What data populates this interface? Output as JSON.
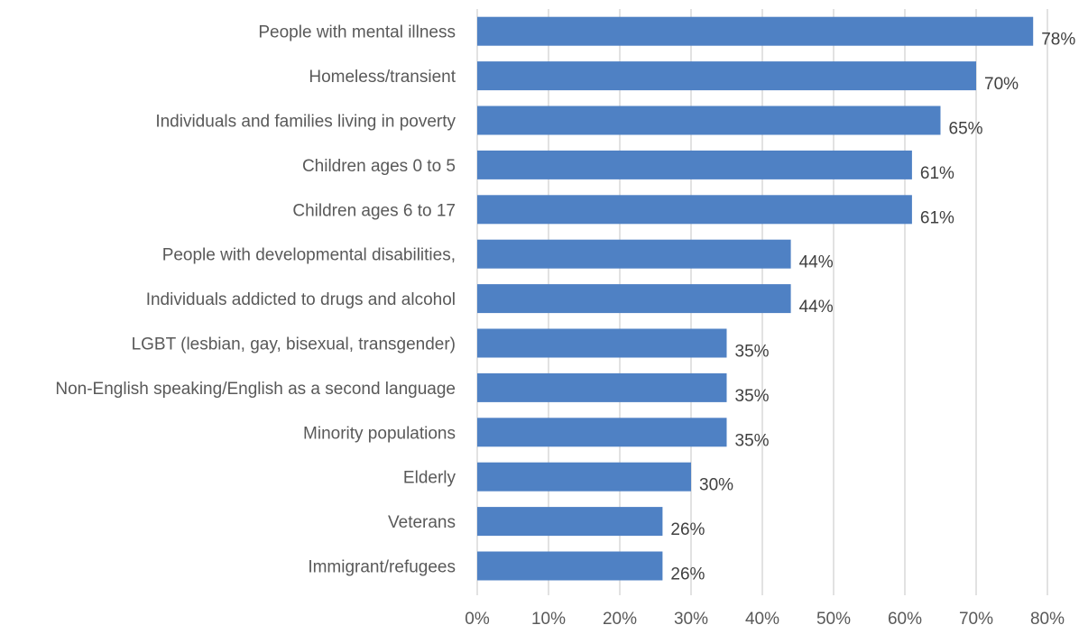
{
  "chart_data": {
    "type": "bar",
    "orientation": "horizontal",
    "categories": [
      "People with mental illness",
      "Homeless/transient",
      "Individuals and families living in poverty",
      "Children ages 0 to 5",
      "Children ages 6 to 17",
      "People with developmental disabilities,",
      "Individuals addicted to drugs and alcohol",
      "LGBT (lesbian, gay, bisexual, transgender)",
      "Non-English speaking/English as a second language",
      "Minority populations",
      "Elderly",
      "Veterans",
      "Immigrant/refugees"
    ],
    "values": [
      78,
      70,
      65,
      61,
      61,
      44,
      44,
      35,
      35,
      35,
      30,
      26,
      26
    ],
    "data_labels": [
      "78%",
      "70%",
      "65%",
      "61%",
      "61%",
      "44%",
      "44%",
      "35%",
      "35%",
      "35%",
      "30%",
      "26%",
      "26%"
    ],
    "xlim": [
      0,
      80
    ],
    "x_ticks": [
      0,
      10,
      20,
      30,
      40,
      50,
      60,
      70,
      80
    ],
    "x_tick_labels": [
      "0%",
      "10%",
      "20%",
      "30%",
      "40%",
      "50%",
      "60%",
      "70%",
      "80%"
    ],
    "title": "",
    "xlabel": "",
    "ylabel": "",
    "grid": "vertical",
    "legend": "none",
    "colors": {
      "bar": "#4f81c4",
      "grid": "#d9d9d9"
    }
  }
}
